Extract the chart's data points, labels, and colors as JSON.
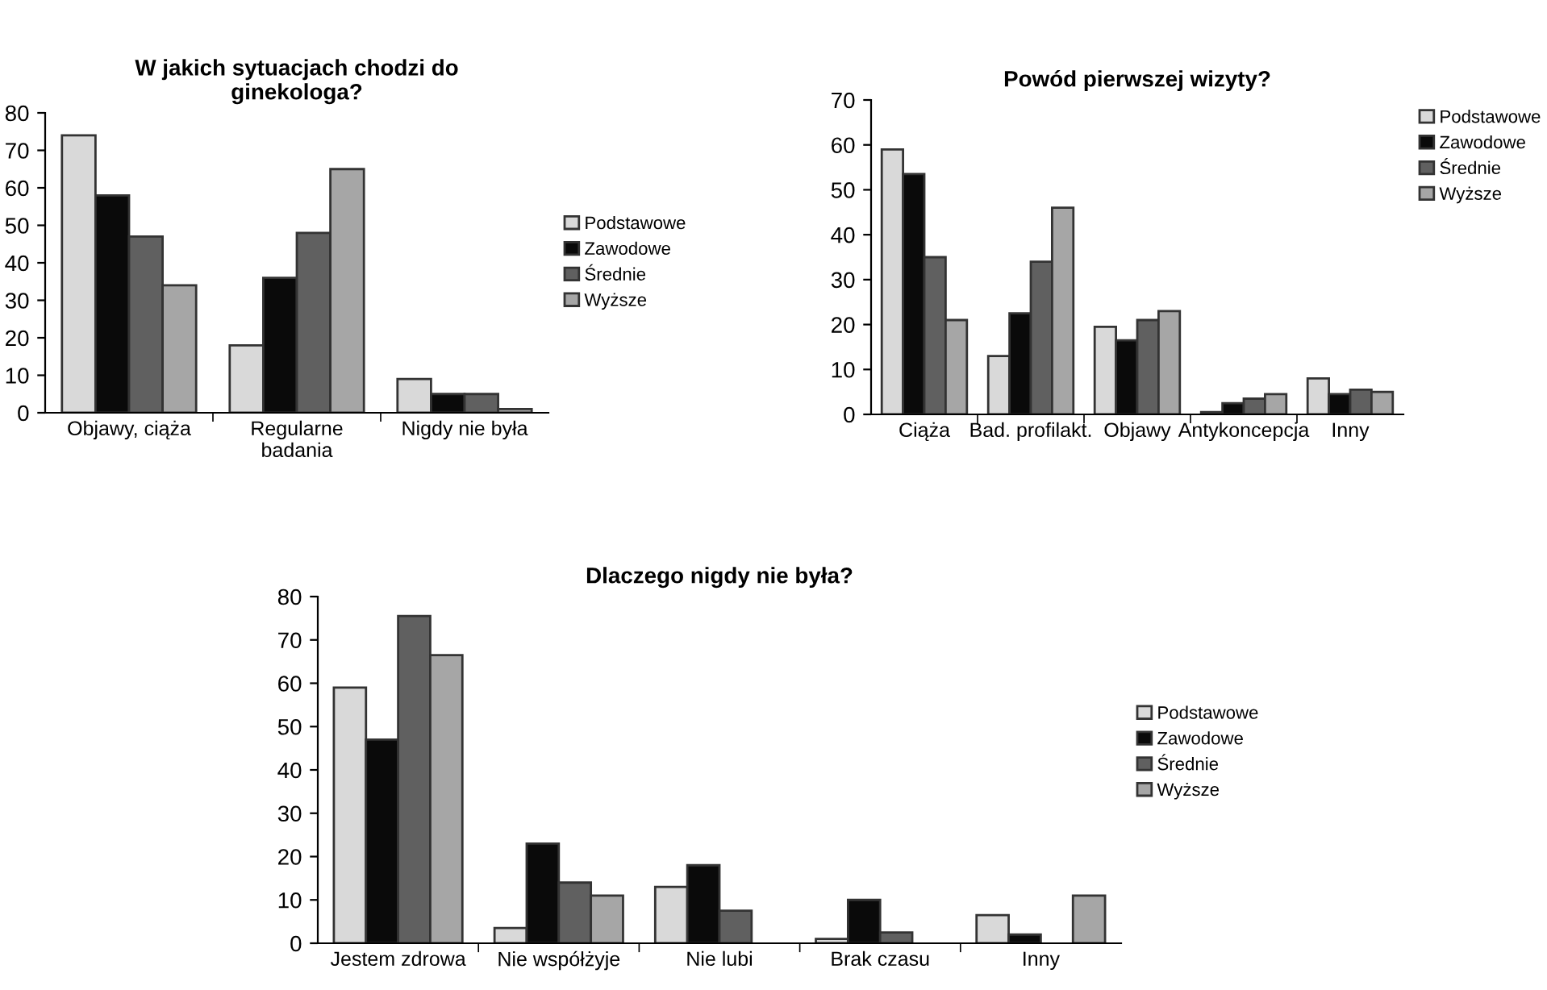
{
  "chart_data": [
    {
      "type": "bar",
      "title": "W jakich sytuacjach chodzi do\nginekologa?",
      "categories": [
        "Objawy, ciąża",
        "Regularne\nbadania",
        "Nigdy nie była"
      ],
      "ylim": [
        0,
        80
      ],
      "yticks": [
        0,
        10,
        20,
        30,
        40,
        50,
        60,
        70,
        80
      ],
      "grid": false,
      "legend": "right",
      "series": [
        {
          "name": "Podstawowe",
          "color": "#d9d9d9",
          "values": [
            74,
            18,
            9
          ]
        },
        {
          "name": "Zawodowe",
          "color": "#0a0a0a",
          "values": [
            58,
            36,
            5
          ]
        },
        {
          "name": "Średnie",
          "color": "#606060",
          "values": [
            47,
            48,
            5
          ]
        },
        {
          "name": "Wyższe",
          "color": "#a6a6a6",
          "values": [
            34,
            65,
            1
          ]
        }
      ]
    },
    {
      "type": "bar",
      "title": "Powód pierwszej wizyty?",
      "categories": [
        "Ciąża",
        "Bad. profilakt.",
        "Objawy",
        "Antykoncepcja",
        "Inny"
      ],
      "ylim": [
        0,
        70
      ],
      "yticks": [
        0,
        10,
        20,
        30,
        40,
        50,
        60,
        70
      ],
      "grid": false,
      "legend": "top right",
      "series": [
        {
          "name": "Podstawowe",
          "color": "#d9d9d9",
          "values": [
            59,
            13,
            19.5,
            0.5,
            8
          ]
        },
        {
          "name": "Zawodowe",
          "color": "#0a0a0a",
          "values": [
            53.5,
            22.5,
            16.5,
            2.5,
            4.5
          ]
        },
        {
          "name": "Średnie",
          "color": "#606060",
          "values": [
            35,
            34,
            21,
            3.5,
            5.5
          ]
        },
        {
          "name": "Wyższe",
          "color": "#a6a6a6",
          "values": [
            21,
            46,
            23,
            4.5,
            5
          ]
        }
      ]
    },
    {
      "type": "bar",
      "title": "Dlaczego nigdy nie była?",
      "categories": [
        "Jestem zdrowa",
        "Nie współżyje",
        "Nie lubi",
        "Brak czasu",
        "Inny"
      ],
      "ylim": [
        0,
        80
      ],
      "yticks": [
        0,
        10,
        20,
        30,
        40,
        50,
        60,
        70,
        80
      ],
      "grid": false,
      "legend": "right",
      "series": [
        {
          "name": "Podstawowe",
          "color": "#d9d9d9",
          "values": [
            59,
            3.5,
            13,
            1,
            6.5
          ]
        },
        {
          "name": "Zawodowe",
          "color": "#0a0a0a",
          "values": [
            47,
            23,
            18,
            10,
            2
          ]
        },
        {
          "name": "Średnie",
          "color": "#606060",
          "values": [
            75.5,
            14,
            7.5,
            2.5,
            null
          ]
        },
        {
          "name": "Wyższe",
          "color": "#a6a6a6",
          "values": [
            66.5,
            11,
            null,
            null,
            11
          ]
        }
      ]
    }
  ]
}
